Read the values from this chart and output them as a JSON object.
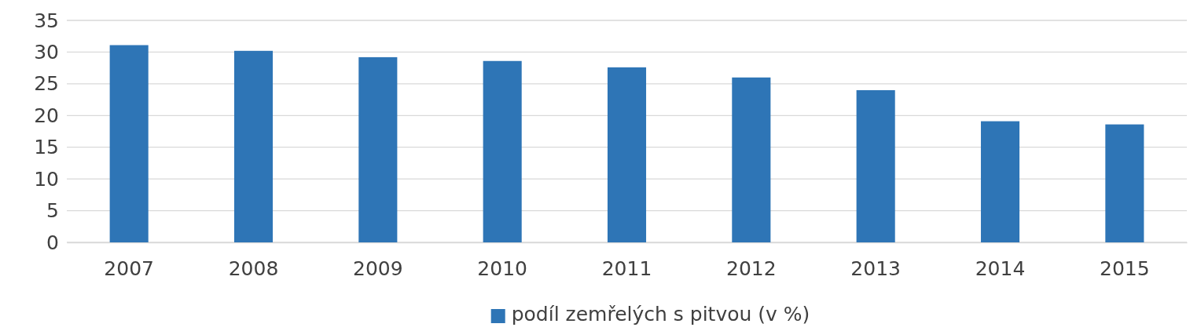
{
  "chart_data": {
    "type": "bar",
    "categories": [
      "2007",
      "2008",
      "2009",
      "2010",
      "2011",
      "2012",
      "2013",
      "2014",
      "2015"
    ],
    "series": [
      {
        "name": "podíl zemřelých s pitvou (v %)",
        "color": "#2e75b6",
        "values": [
          31.1,
          30.2,
          29.2,
          28.6,
          27.6,
          26.0,
          24.0,
          19.1,
          18.6
        ]
      }
    ],
    "ylim": [
      0,
      35
    ],
    "yticks": [
      0,
      5,
      10,
      15,
      20,
      25,
      30,
      35
    ],
    "grid": "y",
    "legend": "bottom"
  }
}
